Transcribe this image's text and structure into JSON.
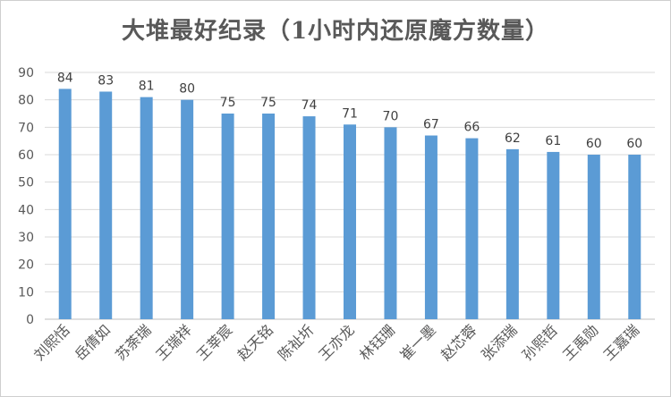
{
  "chart_data": {
    "type": "bar",
    "title": "大堆最好纪录（1小时内还原魔方数量）",
    "categories": [
      "刘熙恬",
      "岳倩如",
      "苏荼瑞",
      "王瑞祥",
      "王莘宸",
      "赵天铭",
      "陈祉圻",
      "王亦龙",
      "林钰珊",
      "崔一墨",
      "赵芯蓉",
      "张添瑞",
      "孙熙哲",
      "王禹勋",
      "王嘉瑞"
    ],
    "values": [
      84,
      83,
      81,
      80,
      75,
      75,
      74,
      71,
      70,
      67,
      66,
      62,
      61,
      60,
      60
    ],
    "ylim": [
      0,
      90
    ],
    "yticks": [
      0,
      10,
      20,
      30,
      40,
      50,
      60,
      70,
      80,
      90
    ],
    "grid": true,
    "bar_color": "#5b9bd5",
    "grid_color": "#d9d9d9",
    "data_labels": true,
    "legend": "none"
  }
}
